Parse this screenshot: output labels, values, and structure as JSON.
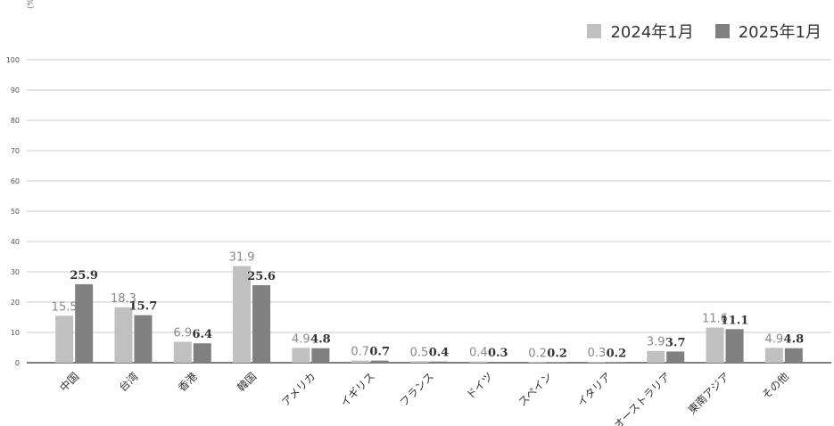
{
  "chart_data": {
    "type": "bar",
    "unit_label": "(%)",
    "ylim": [
      0,
      100
    ],
    "yticks": [
      0,
      10,
      20,
      30,
      40,
      50,
      60,
      70,
      80,
      90,
      100
    ],
    "grid": true,
    "legend_position": "top-right",
    "categories": [
      "中国",
      "台湾",
      "香港",
      "韓国",
      "アメリカ",
      "イギリス",
      "フランス",
      "ドイツ",
      "スペイン",
      "イタリア",
      "オーストラリア",
      "東南アジア",
      "その他"
    ],
    "series": [
      {
        "name": "2024年1月",
        "color": "#c0c0c0",
        "values": [
          15.5,
          18.3,
          6.9,
          31.9,
          4.9,
          0.7,
          0.5,
          0.4,
          0.2,
          0.3,
          3.9,
          11.6,
          4.9
        ]
      },
      {
        "name": "2025年1月",
        "color": "#808080",
        "values": [
          25.9,
          15.7,
          6.4,
          25.6,
          4.8,
          0.7,
          0.4,
          0.3,
          0.2,
          0.2,
          3.7,
          11.1,
          4.8
        ]
      }
    ]
  }
}
